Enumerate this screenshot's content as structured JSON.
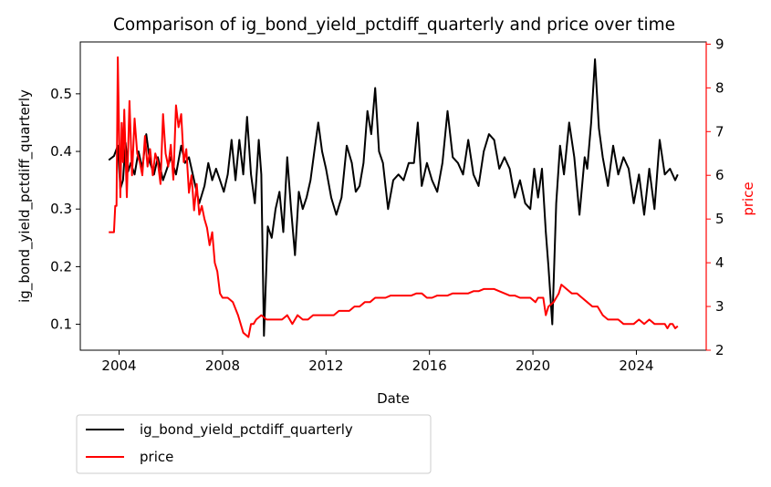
{
  "chart_data": {
    "type": "line",
    "title": "Comparison of ig_bond_yield_pctdiff_quarterly and price over time",
    "xlabel": "Date",
    "ylabel_left": "ig_bond_yield_pctdiff_quarterly",
    "ylabel_right": "price",
    "xlim": [
      2002.5,
      2026.7
    ],
    "ylim_left": [
      0.055,
      0.59
    ],
    "ylim_right": [
      2.0,
      9.05
    ],
    "x_ticks": [
      2004,
      2008,
      2012,
      2016,
      2020,
      2024
    ],
    "x_tick_labels": [
      "2004",
      "2008",
      "2012",
      "2016",
      "2020",
      "2024"
    ],
    "y_left_ticks": [
      0.1,
      0.2,
      0.3,
      0.4,
      0.5
    ],
    "y_left_tick_labels": [
      "0.1",
      "0.2",
      "0.3",
      "0.4",
      "0.5"
    ],
    "y_right_ticks": [
      2,
      3,
      4,
      5,
      6,
      7,
      8,
      9
    ],
    "y_right_tick_labels": [
      "2",
      "3",
      "4",
      "5",
      "6",
      "7",
      "8",
      "9"
    ],
    "grid": false,
    "legend_position": "below-left",
    "series": [
      {
        "name": "ig_bond_yield_pctdiff_quarterly",
        "axis": "left",
        "color": "#000000",
        "x": [
          2003.6,
          2003.8,
          2003.95,
          2004.05,
          2004.15,
          2004.25,
          2004.35,
          2004.45,
          2004.6,
          2004.75,
          2004.9,
          2005.05,
          2005.2,
          2005.35,
          2005.5,
          2005.7,
          2005.85,
          2006.0,
          2006.2,
          2006.4,
          2006.55,
          2006.7,
          2006.9,
          2007.1,
          2007.3,
          2007.45,
          2007.6,
          2007.75,
          2007.9,
          2008.05,
          2008.2,
          2008.35,
          2008.5,
          2008.65,
          2008.8,
          2008.95,
          2009.1,
          2009.25,
          2009.4,
          2009.5,
          2009.6,
          2009.75,
          2009.9,
          2010.05,
          2010.2,
          2010.35,
          2010.5,
          2010.65,
          2010.8,
          2010.95,
          2011.1,
          2011.25,
          2011.4,
          2011.55,
          2011.7,
          2011.85,
          2012.0,
          2012.2,
          2012.4,
          2012.6,
          2012.8,
          2013.0,
          2013.15,
          2013.3,
          2013.45,
          2013.6,
          2013.75,
          2013.9,
          2014.05,
          2014.2,
          2014.4,
          2014.6,
          2014.8,
          2015.0,
          2015.2,
          2015.4,
          2015.55,
          2015.7,
          2015.9,
          2016.1,
          2016.3,
          2016.5,
          2016.7,
          2016.9,
          2017.1,
          2017.3,
          2017.5,
          2017.7,
          2017.9,
          2018.1,
          2018.3,
          2018.5,
          2018.7,
          2018.9,
          2019.1,
          2019.3,
          2019.5,
          2019.7,
          2019.9,
          2020.05,
          2020.2,
          2020.35,
          2020.5,
          2020.6,
          2020.75,
          2020.9,
          2021.05,
          2021.2,
          2021.4,
          2021.6,
          2021.8,
          2022.0,
          2022.1,
          2022.25,
          2022.4,
          2022.55,
          2022.7,
          2022.9,
          2023.1,
          2023.3,
          2023.5,
          2023.7,
          2023.9,
          2024.1,
          2024.3,
          2024.5,
          2024.7,
          2024.9,
          2025.1,
          2025.3,
          2025.5,
          2025.6
        ],
        "y": [
          0.385,
          0.392,
          0.41,
          0.335,
          0.35,
          0.415,
          0.365,
          0.38,
          0.36,
          0.4,
          0.37,
          0.43,
          0.38,
          0.36,
          0.39,
          0.35,
          0.37,
          0.39,
          0.36,
          0.41,
          0.38,
          0.39,
          0.35,
          0.31,
          0.34,
          0.38,
          0.35,
          0.37,
          0.35,
          0.33,
          0.36,
          0.42,
          0.35,
          0.42,
          0.36,
          0.46,
          0.36,
          0.31,
          0.42,
          0.36,
          0.08,
          0.27,
          0.25,
          0.3,
          0.33,
          0.26,
          0.39,
          0.3,
          0.22,
          0.33,
          0.3,
          0.32,
          0.35,
          0.4,
          0.45,
          0.4,
          0.37,
          0.32,
          0.29,
          0.32,
          0.41,
          0.38,
          0.33,
          0.34,
          0.38,
          0.47,
          0.43,
          0.51,
          0.4,
          0.38,
          0.3,
          0.35,
          0.36,
          0.35,
          0.38,
          0.38,
          0.45,
          0.34,
          0.38,
          0.35,
          0.33,
          0.38,
          0.47,
          0.39,
          0.38,
          0.36,
          0.42,
          0.36,
          0.34,
          0.4,
          0.43,
          0.42,
          0.37,
          0.39,
          0.37,
          0.32,
          0.35,
          0.31,
          0.3,
          0.37,
          0.32,
          0.37,
          0.26,
          0.2,
          0.1,
          0.31,
          0.41,
          0.36,
          0.45,
          0.39,
          0.29,
          0.39,
          0.37,
          0.45,
          0.56,
          0.44,
          0.39,
          0.34,
          0.41,
          0.36,
          0.39,
          0.37,
          0.31,
          0.36,
          0.29,
          0.37,
          0.3,
          0.42,
          0.36,
          0.37,
          0.35,
          0.36
        ]
      },
      {
        "name": "price",
        "axis": "right",
        "color": "#ff0000",
        "x": [
          2003.6,
          2003.8,
          2003.85,
          2003.9,
          2003.95,
          2004.0,
          2004.05,
          2004.1,
          2004.15,
          2004.2,
          2004.3,
          2004.4,
          2004.5,
          2004.6,
          2004.7,
          2004.8,
          2004.9,
          2005.0,
          2005.1,
          2005.2,
          2005.3,
          2005.4,
          2005.5,
          2005.6,
          2005.7,
          2005.8,
          2005.9,
          2006.0,
          2006.1,
          2006.2,
          2006.3,
          2006.4,
          2006.5,
          2006.6,
          2006.7,
          2006.8,
          2006.9,
          2007.0,
          2007.1,
          2007.2,
          2007.3,
          2007.4,
          2007.5,
          2007.6,
          2007.7,
          2007.8,
          2007.9,
          2008.0,
          2008.2,
          2008.4,
          2008.6,
          2008.8,
          2009.0,
          2009.1,
          2009.2,
          2009.3,
          2009.5,
          2009.7,
          2009.9,
          2010.1,
          2010.3,
          2010.5,
          2010.7,
          2010.9,
          2011.1,
          2011.3,
          2011.5,
          2011.7,
          2011.9,
          2012.1,
          2012.3,
          2012.5,
          2012.7,
          2012.9,
          2013.1,
          2013.3,
          2013.5,
          2013.7,
          2013.9,
          2014.1,
          2014.3,
          2014.5,
          2014.7,
          2014.9,
          2015.1,
          2015.3,
          2015.5,
          2015.7,
          2015.9,
          2016.1,
          2016.3,
          2016.5,
          2016.7,
          2016.9,
          2017.1,
          2017.3,
          2017.5,
          2017.7,
          2017.9,
          2018.1,
          2018.3,
          2018.5,
          2018.7,
          2018.9,
          2019.1,
          2019.3,
          2019.5,
          2019.7,
          2019.9,
          2020.1,
          2020.2,
          2020.3,
          2020.4,
          2020.5,
          2020.6,
          2020.8,
          2021.0,
          2021.1,
          2021.3,
          2021.5,
          2021.7,
          2021.9,
          2022.1,
          2022.3,
          2022.5,
          2022.7,
          2022.9,
          2023.1,
          2023.3,
          2023.5,
          2023.7,
          2023.9,
          2024.1,
          2024.3,
          2024.5,
          2024.7,
          2024.9,
          2025.1,
          2025.2,
          2025.3,
          2025.4,
          2025.5,
          2025.6
        ],
        "y": [
          4.7,
          4.7,
          5.3,
          5.3,
          8.7,
          7.0,
          5.5,
          7.2,
          6.3,
          7.5,
          5.5,
          7.7,
          6.0,
          7.3,
          6.5,
          6.3,
          6.0,
          6.9,
          6.2,
          6.6,
          6.0,
          6.5,
          6.3,
          5.8,
          7.4,
          6.5,
          6.2,
          6.7,
          5.9,
          7.6,
          7.1,
          7.4,
          6.3,
          6.6,
          5.6,
          6.0,
          5.2,
          5.8,
          5.1,
          5.3,
          5.0,
          4.8,
          4.4,
          4.7,
          4.0,
          3.8,
          3.3,
          3.2,
          3.2,
          3.1,
          2.8,
          2.4,
          2.3,
          2.6,
          2.6,
          2.7,
          2.8,
          2.7,
          2.7,
          2.7,
          2.7,
          2.8,
          2.6,
          2.8,
          2.7,
          2.7,
          2.8,
          2.8,
          2.8,
          2.8,
          2.8,
          2.9,
          2.9,
          2.9,
          3.0,
          3.0,
          3.1,
          3.1,
          3.2,
          3.2,
          3.2,
          3.25,
          3.25,
          3.25,
          3.25,
          3.25,
          3.3,
          3.3,
          3.2,
          3.2,
          3.25,
          3.25,
          3.25,
          3.3,
          3.3,
          3.3,
          3.3,
          3.35,
          3.35,
          3.4,
          3.4,
          3.4,
          3.35,
          3.3,
          3.25,
          3.25,
          3.2,
          3.2,
          3.2,
          3.1,
          3.2,
          3.2,
          3.2,
          2.8,
          3.0,
          3.1,
          3.3,
          3.5,
          3.4,
          3.3,
          3.3,
          3.2,
          3.1,
          3.0,
          3.0,
          2.8,
          2.7,
          2.7,
          2.7,
          2.6,
          2.6,
          2.6,
          2.7,
          2.6,
          2.7,
          2.6,
          2.6,
          2.6,
          2.5,
          2.6,
          2.6,
          2.5,
          2.55
        ]
      }
    ]
  }
}
